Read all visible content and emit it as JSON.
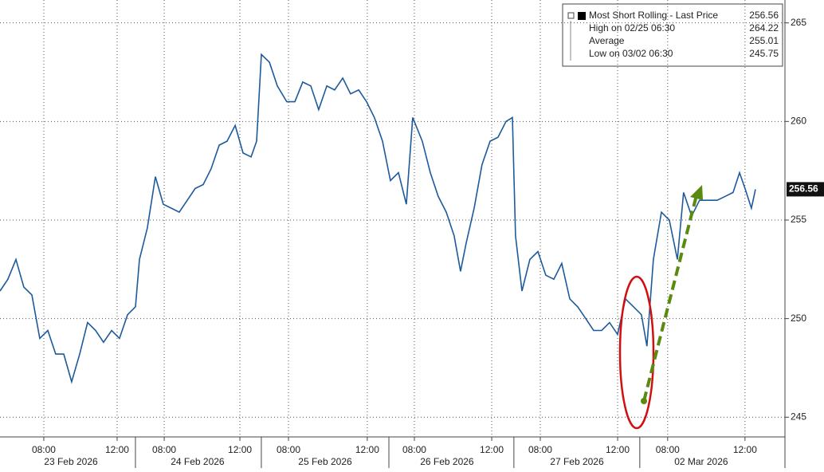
{
  "chart_data": {
    "type": "line",
    "x": [
      0,
      0.43,
      0.87,
      1.3,
      1.74,
      2.17,
      2.61,
      3.04,
      3.48,
      3.91,
      4.35,
      4.78,
      5.22,
      5.65,
      6.09,
      6.52,
      6.96,
      7.39,
      7.61,
      8.04,
      8.48,
      8.91,
      9.35,
      9.78,
      10.22,
      10.65,
      11.09,
      11.52,
      11.96,
      12.39,
      12.83,
      13.26,
      13.7,
      14.0,
      14.26,
      14.7,
      15.13,
      15.65,
      16.09,
      16.52,
      16.96,
      17.39,
      17.83,
      18.26,
      18.7,
      19.13,
      19.57,
      20.0,
      20.43,
      20.87,
      21.3,
      21.74,
      22.17,
      22.52,
      23.04,
      23.48,
      23.91,
      24.35,
      24.78,
      25.13,
      25.43,
      25.87,
      26.3,
      26.74,
      27.17,
      27.61,
      27.96,
      28.13,
      28.48,
      28.91,
      29.35,
      29.78,
      30.22,
      30.65,
      31.09,
      31.52,
      31.96,
      32.39,
      32.83,
      33.26,
      33.7,
      34.13,
      34.57,
      35.0,
      35.3,
      35.65,
      36.09,
      36.52,
      36.96,
      37.3,
      37.74,
      38.17,
      38.7,
      39.13,
      39.57,
      40.0,
      40.35,
      40.65,
      41.0,
      41.22
    ],
    "series": [
      {
        "name": "Most Short Rolling - Last Price",
        "color": "#1d5a9c",
        "values": [
          251.4,
          252.0,
          253.0,
          251.6,
          251.2,
          249.0,
          249.4,
          248.2,
          248.2,
          246.8,
          248.2,
          249.8,
          249.4,
          248.8,
          249.4,
          249.0,
          250.2,
          250.6,
          253.0,
          254.6,
          257.2,
          255.8,
          255.6,
          255.4,
          256.0,
          256.6,
          256.8,
          257.6,
          258.8,
          259.0,
          259.8,
          258.4,
          258.2,
          259.0,
          263.4,
          263.0,
          261.8,
          261.0,
          261.0,
          262.0,
          261.8,
          260.6,
          261.8,
          261.6,
          262.2,
          261.4,
          261.6,
          261.0,
          260.2,
          259.0,
          257.0,
          257.4,
          255.8,
          260.2,
          259.0,
          257.4,
          256.2,
          255.4,
          254.2,
          252.4,
          253.8,
          255.6,
          257.8,
          259.0,
          259.2,
          260.0,
          260.2,
          254.2,
          251.4,
          253.0,
          253.4,
          252.2,
          252.0,
          252.8,
          251.0,
          250.6,
          250.0,
          249.4,
          249.4,
          249.8,
          249.2,
          251.0,
          250.6,
          250.2,
          248.6,
          253.0,
          255.4,
          255.0,
          253.0,
          256.4,
          255.2,
          256.0,
          256.0,
          256.0,
          256.2,
          256.4,
          257.4,
          256.6,
          255.6,
          256.56
        ]
      }
    ],
    "xlim": [
      0,
      42.83
    ],
    "ylim": [
      244,
      266.16
    ],
    "yticks": [
      245,
      250,
      255,
      260,
      265
    ],
    "xticks": [
      {
        "value": 2.39,
        "label": "08:00"
      },
      {
        "value": 6.39,
        "label": "12:00"
      },
      {
        "value": 8.96,
        "label": "08:00"
      },
      {
        "value": 13.09,
        "label": "12:00"
      },
      {
        "value": 15.74,
        "label": "08:00"
      },
      {
        "value": 20.04,
        "label": "12:00"
      },
      {
        "value": 22.61,
        "label": "08:00"
      },
      {
        "value": 26.83,
        "label": "12:00"
      },
      {
        "value": 29.48,
        "label": "08:00"
      },
      {
        "value": 33.7,
        "label": "12:00"
      },
      {
        "value": 36.43,
        "label": "08:00"
      },
      {
        "value": 40.65,
        "label": "12:00"
      }
    ],
    "day_ticks": [
      {
        "value": 3.87,
        "label": "23 Feb 2026"
      },
      {
        "value": 10.78,
        "label": "24 Feb 2026"
      },
      {
        "value": 17.74,
        "label": "25 Feb 2026"
      },
      {
        "value": 24.39,
        "label": "26 Feb 2026"
      },
      {
        "value": 31.48,
        "label": "27 Feb 2026"
      },
      {
        "value": 38.26,
        "label": "02 Mar 2026"
      }
    ],
    "day_separators": [
      7.39,
      14.26,
      21.22,
      28.04,
      34.91
    ],
    "grid": true,
    "legend": [
      {
        "label": "Most Short Rolling - Last Price",
        "value": "256.56"
      },
      {
        "label": "High on 02/25 06:30",
        "value": "264.22"
      },
      {
        "label": "Average",
        "value": "255.01"
      },
      {
        "label": "Low on 03/02 06:30",
        "value": "245.75"
      }
    ]
  }
}
